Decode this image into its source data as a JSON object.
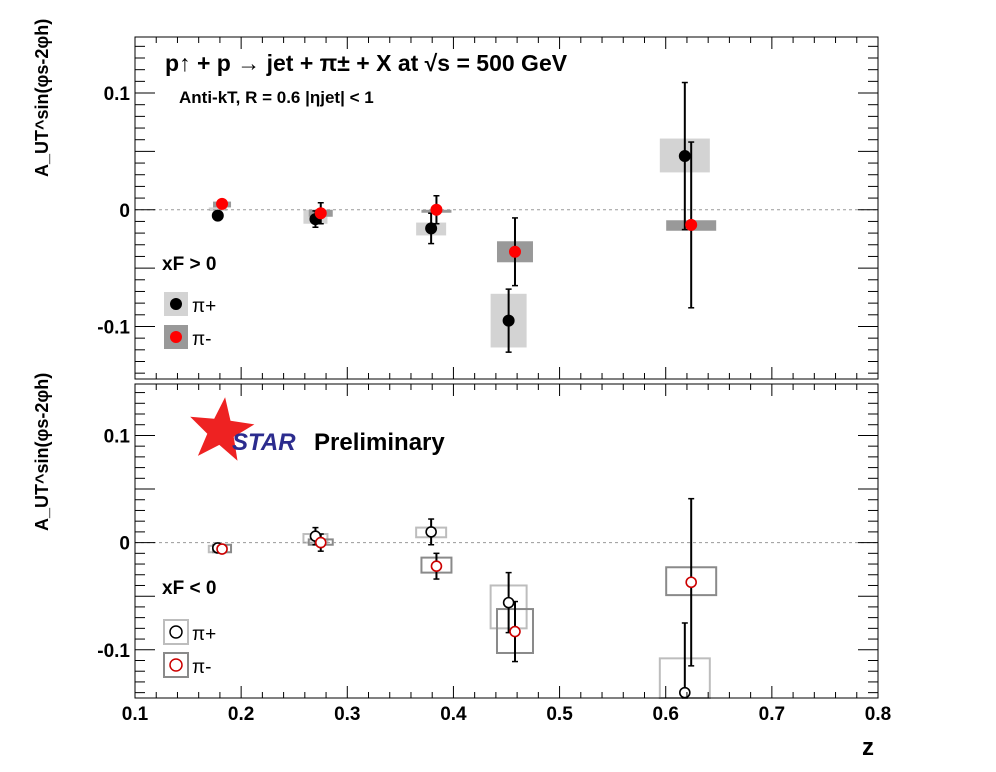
{
  "chart_data": [
    {
      "type": "scatter",
      "panel": "top",
      "title": "p↑ + p → jet + π± + X at √s = 500 GeV",
      "subtitle": "Anti-kT, R = 0.6     |ηjet| < 1",
      "condition_label": "xF > 0",
      "ylabel": "A_UT^sin(φs-2φh)",
      "xlim": [
        0.1,
        0.8
      ],
      "ylim": [
        -0.145,
        0.148
      ],
      "y_ticks": [
        "-0.1",
        "0",
        "0.1"
      ],
      "zero_line": true,
      "legend": {
        "position": "left",
        "entries": [
          "π+",
          "π-"
        ]
      },
      "series": [
        {
          "name": "π+",
          "marker": "filled-circle",
          "color": "#000000",
          "points": [
            {
              "x": 0.178,
              "y": -0.005,
              "err": 0.0,
              "sys": [
                -0.001,
                0.002
              ]
            },
            {
              "x": 0.27,
              "y": -0.008,
              "err": 0.007,
              "sys": [
                -0.012,
                0.0
              ]
            },
            {
              "x": 0.379,
              "y": -0.016,
              "err": 0.013,
              "sys": [
                -0.022,
                -0.011
              ]
            },
            {
              "x": 0.452,
              "y": -0.095,
              "err": 0.027,
              "sys": [
                -0.118,
                -0.072
              ]
            },
            {
              "x": 0.618,
              "y": 0.046,
              "err": 0.063,
              "sys": [
                0.032,
                0.061
              ]
            }
          ]
        },
        {
          "name": "π-",
          "marker": "filled-circle",
          "color": "#ff0000",
          "points": [
            {
              "x": 0.182,
              "y": 0.005,
              "err": 0.0,
              "sys": [
                0.002,
                0.007
              ]
            },
            {
              "x": 0.275,
              "y": -0.003,
              "err": 0.009,
              "sys": [
                -0.006,
                0.0
              ]
            },
            {
              "x": 0.384,
              "y": 0.0,
              "err": 0.012,
              "sys": [
                -0.002,
                0.0
              ]
            },
            {
              "x": 0.458,
              "y": -0.036,
              "err": 0.029,
              "sys": [
                -0.045,
                -0.027
              ]
            },
            {
              "x": 0.624,
              "y": -0.013,
              "err": 0.071,
              "sys": [
                -0.018,
                -0.009
              ]
            }
          ]
        }
      ]
    },
    {
      "type": "scatter",
      "panel": "bottom",
      "title": "",
      "condition_label": "xF < 0",
      "ylabel": "A_UT^sin(φs-2φh)",
      "xlabel": "z",
      "xlim": [
        0.1,
        0.8
      ],
      "ylim": [
        -0.145,
        0.148
      ],
      "x_ticks": [
        "0.1",
        "0.2",
        "0.3",
        "0.4",
        "0.5",
        "0.6",
        "0.7",
        "0.8"
      ],
      "y_ticks": [
        "-0.1",
        "0",
        "0.1"
      ],
      "zero_line": true,
      "legend": {
        "position": "left",
        "entries": [
          "π+",
          "π-"
        ]
      },
      "series": [
        {
          "name": "π+",
          "marker": "open-circle",
          "color": "#000000",
          "points": [
            {
              "x": 0.178,
              "y": -0.005,
              "err": 0.0,
              "sys": [
                -0.009,
                -0.003
              ]
            },
            {
              "x": 0.27,
              "y": 0.006,
              "err": 0.008,
              "sys": [
                0.0,
                0.008
              ]
            },
            {
              "x": 0.379,
              "y": 0.01,
              "err": 0.012,
              "sys": [
                0.005,
                0.014
              ]
            },
            {
              "x": 0.452,
              "y": -0.056,
              "err": 0.028,
              "sys": [
                -0.08,
                -0.04
              ]
            },
            {
              "x": 0.618,
              "y": -0.14,
              "err": 0.065,
              "sys": [
                -0.16,
                -0.108
              ]
            }
          ]
        },
        {
          "name": "π-",
          "marker": "open-circle",
          "color": "#cc0000",
          "points": [
            {
              "x": 0.182,
              "y": -0.006,
              "err": 0.0,
              "sys": [
                -0.009,
                -0.002
              ]
            },
            {
              "x": 0.275,
              "y": 0.0,
              "err": 0.008,
              "sys": [
                -0.002,
                0.003
              ]
            },
            {
              "x": 0.384,
              "y": -0.022,
              "err": 0.012,
              "sys": [
                -0.028,
                -0.014
              ]
            },
            {
              "x": 0.458,
              "y": -0.083,
              "err": 0.028,
              "sys": [
                -0.103,
                -0.062
              ]
            },
            {
              "x": 0.624,
              "y": -0.037,
              "err": 0.078,
              "sys": [
                -0.049,
                -0.023
              ]
            }
          ]
        }
      ]
    }
  ],
  "badge": {
    "logo": "STAR",
    "text": "Preliminary"
  },
  "colors": {
    "sys_band_light": "#d3d3d3",
    "sys_band_dark": "#999999",
    "zero_line": "#9a9a9a",
    "star_red": "#ee2222",
    "star_blue": "#2c2c8e"
  }
}
